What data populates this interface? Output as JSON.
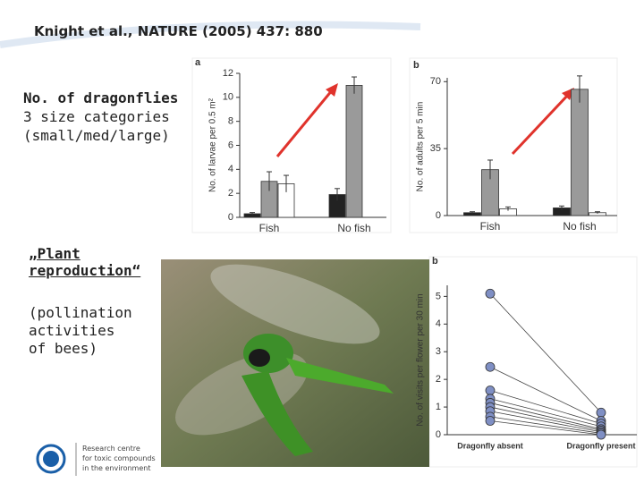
{
  "title": "Knight et al., NATURE (2005) 437: 880",
  "left_text": {
    "heading1": "No. of dragonflies",
    "line1": "3 size categories",
    "line2": "(small/med/large)",
    "heading2": "„Plant reproduction“",
    "line3": "(pollination",
    "line4": "activities",
    "line5": "of bees)"
  },
  "logo": {
    "lines": [
      "Research centre",
      "for toxic compounds",
      "in the environment"
    ]
  },
  "chart_data": [
    {
      "type": "bar",
      "panel": "a",
      "y_label": "No. of larvae per 0.5 m²",
      "categories": [
        "Fish",
        "No fish"
      ],
      "series": [
        {
          "color": "#222222",
          "values": [
            0.3,
            1.9
          ],
          "errors": [
            0.1,
            0.5
          ]
        },
        {
          "color": "#9a9a9a",
          "values": [
            3.0,
            11.0
          ],
          "errors": [
            0.8,
            0.7
          ]
        },
        {
          "color": "#ffffff",
          "values": [
            2.8,
            0
          ],
          "errors": [
            0.7,
            0
          ]
        }
      ],
      "ylim": [
        0,
        12
      ],
      "yticks": [
        0,
        2,
        4,
        6,
        8,
        10,
        12
      ]
    },
    {
      "type": "bar",
      "panel": "b",
      "y_label": "No. of adults per 5 min",
      "categories": [
        "Fish",
        "No fish"
      ],
      "series": [
        {
          "color": "#222222",
          "values": [
            1.5,
            4
          ],
          "errors": [
            0.5,
            1
          ]
        },
        {
          "color": "#9a9a9a",
          "values": [
            24,
            66
          ],
          "errors": [
            5,
            7
          ]
        },
        {
          "color": "#ffffff",
          "values": [
            3.5,
            1.5
          ],
          "errors": [
            1,
            0.5
          ]
        }
      ],
      "ylim": [
        0,
        72
      ],
      "yticks": [
        0,
        35,
        70
      ]
    },
    {
      "type": "slope",
      "panel": "b",
      "y_label": "No. of visits per flower per 30 min",
      "categories": [
        "Dragonfly absent",
        "Dragonfly present"
      ],
      "color": "#7f8fc4",
      "series": [
        {
          "values": [
            5.1,
            0.8
          ]
        },
        {
          "values": [
            2.45,
            0.5
          ]
        },
        {
          "values": [
            1.6,
            0.4
          ]
        },
        {
          "values": [
            1.3,
            0.3
          ]
        },
        {
          "values": [
            1.15,
            0.2
          ]
        },
        {
          "values": [
            1.0,
            0.15
          ]
        },
        {
          "values": [
            0.85,
            0.1
          ]
        },
        {
          "values": [
            0.65,
            0.05
          ]
        },
        {
          "values": [
            0.5,
            0.0
          ]
        }
      ],
      "ylim": [
        0,
        5.4
      ],
      "yticks": [
        0,
        1,
        2,
        3,
        4,
        5
      ]
    }
  ]
}
